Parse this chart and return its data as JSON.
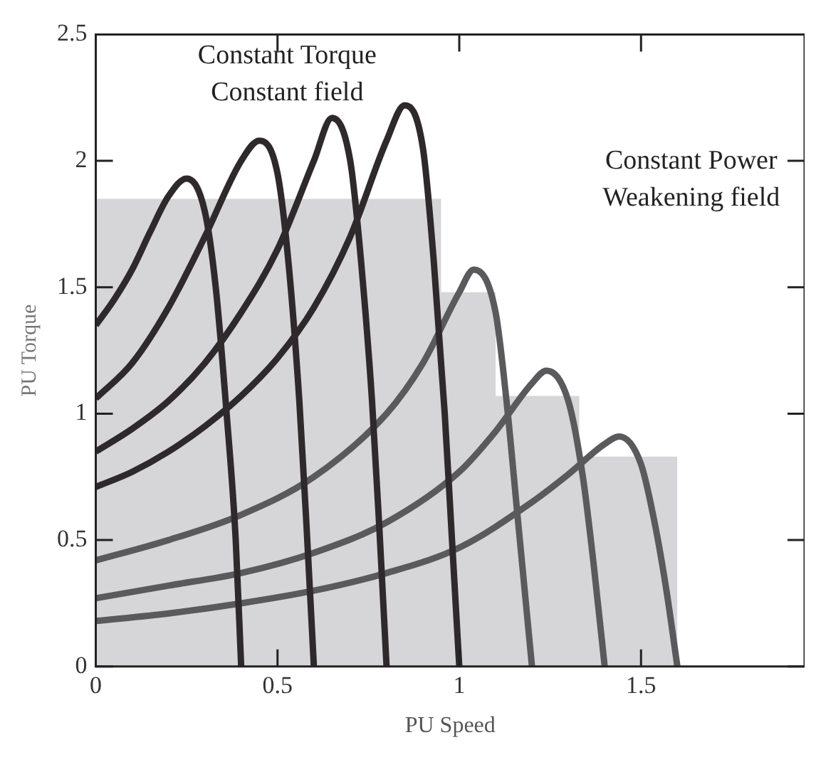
{
  "chart_data": {
    "type": "line",
    "xlabel": "PU Speed",
    "ylabel": "PU Torque",
    "xlim": [
      0,
      1.95
    ],
    "ylim": [
      0,
      2.5
    ],
    "xticks": [
      0,
      0.5,
      1,
      1.5
    ],
    "yticks": [
      0,
      0.5,
      1,
      1.5,
      2,
      2.5
    ],
    "grid": false,
    "legend": false,
    "annotations": [
      "Constant Torque\nConstant field",
      "Constant Power\nWeakening field"
    ],
    "series": [
      {
        "type": "area",
        "color": "#d6d6d8",
        "x": [
          0,
          0.95,
          0.95,
          1.1,
          1.1,
          1.33,
          1.33,
          1.6,
          1.6
        ],
        "values": [
          1.85,
          1.85,
          1.48,
          1.48,
          1.07,
          1.07,
          0.83,
          0.83,
          0
        ]
      },
      {
        "color": "#2e2a2c",
        "x": [
          0,
          0.05,
          0.1,
          0.15,
          0.2,
          0.25,
          0.3,
          0.33,
          0.36,
          0.385,
          0.4
        ],
        "values": [
          1.35,
          1.45,
          1.57,
          1.72,
          1.86,
          1.93,
          1.8,
          1.5,
          1.0,
          0.5,
          0
        ]
      },
      {
        "color": "#2e2a2c",
        "x": [
          0,
          0.1,
          0.2,
          0.3,
          0.4,
          0.45,
          0.5,
          0.53,
          0.56,
          0.58,
          0.6
        ],
        "values": [
          1.06,
          1.2,
          1.42,
          1.7,
          2.0,
          2.08,
          1.95,
          1.6,
          1.05,
          0.55,
          0
        ]
      },
      {
        "color": "#2e2a2c",
        "x": [
          0,
          0.1,
          0.2,
          0.3,
          0.4,
          0.5,
          0.6,
          0.65,
          0.7,
          0.73,
          0.76,
          0.78,
          0.8
        ],
        "values": [
          0.85,
          0.94,
          1.05,
          1.2,
          1.4,
          1.65,
          2.0,
          2.17,
          2.0,
          1.6,
          1.05,
          0.55,
          0
        ]
      },
      {
        "color": "#2e2a2c",
        "x": [
          0,
          0.1,
          0.2,
          0.3,
          0.4,
          0.5,
          0.6,
          0.7,
          0.8,
          0.85,
          0.9,
          0.93,
          0.96,
          0.98,
          1.0
        ],
        "values": [
          0.71,
          0.77,
          0.85,
          0.95,
          1.07,
          1.22,
          1.42,
          1.7,
          2.08,
          2.22,
          2.05,
          1.6,
          1.0,
          0.5,
          0
        ]
      },
      {
        "color": "#5a5a5c",
        "x": [
          0,
          0.2,
          0.4,
          0.6,
          0.8,
          0.9,
          1.0,
          1.04,
          1.1,
          1.13,
          1.16,
          1.2
        ],
        "values": [
          0.42,
          0.5,
          0.6,
          0.75,
          1.0,
          1.2,
          1.48,
          1.57,
          1.4,
          1.05,
          0.6,
          0
        ]
      },
      {
        "color": "#5a5a5c",
        "x": [
          0,
          0.2,
          0.4,
          0.6,
          0.8,
          1.0,
          1.1,
          1.2,
          1.24,
          1.3,
          1.34,
          1.37,
          1.4
        ],
        "values": [
          0.27,
          0.32,
          0.37,
          0.45,
          0.57,
          0.77,
          0.93,
          1.12,
          1.17,
          1.05,
          0.75,
          0.4,
          0
        ]
      },
      {
        "color": "#5a5a5c",
        "x": [
          0,
          0.2,
          0.4,
          0.6,
          0.8,
          1.0,
          1.2,
          1.3,
          1.4,
          1.44,
          1.5,
          1.54,
          1.57,
          1.6
        ],
        "values": [
          0.18,
          0.21,
          0.25,
          0.3,
          0.37,
          0.47,
          0.65,
          0.76,
          0.88,
          0.91,
          0.8,
          0.55,
          0.3,
          0
        ]
      }
    ]
  }
}
